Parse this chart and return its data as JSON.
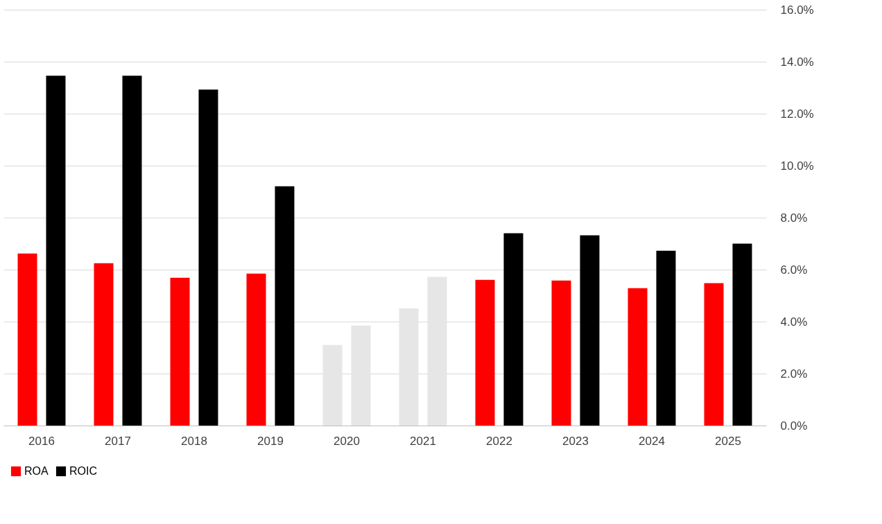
{
  "chart_data": {
    "type": "bar",
    "categories": [
      "2016",
      "2017",
      "2018",
      "2019",
      "2020",
      "2021",
      "2022",
      "2023",
      "2024",
      "2025"
    ],
    "series": [
      {
        "name": "ROA",
        "color": "#ff0000",
        "colors": [
          "#ff0000",
          "#ff0000",
          "#ff0000",
          "#ff0000",
          "#e6e6e6",
          "#e6e6e6",
          "#ff0000",
          "#ff0000",
          "#ff0000",
          "#ff0000"
        ],
        "values": [
          6.62,
          6.25,
          5.69,
          5.85,
          3.1,
          4.51,
          5.61,
          5.58,
          5.29,
          5.48
        ]
      },
      {
        "name": "ROIC",
        "color": "#000000",
        "colors": [
          "#000000",
          "#000000",
          "#000000",
          "#000000",
          "#e6e6e6",
          "#e6e6e6",
          "#000000",
          "#000000",
          "#000000",
          "#000000"
        ],
        "values": [
          13.46,
          13.46,
          12.93,
          9.21,
          3.85,
          5.72,
          7.4,
          7.32,
          6.73,
          7.0
        ]
      }
    ],
    "ylim": [
      0,
      16
    ],
    "yticks": [
      {
        "value": 0,
        "label": "0.0%"
      },
      {
        "value": 2,
        "label": "2.0%"
      },
      {
        "value": 4,
        "label": "4.0%"
      },
      {
        "value": 6,
        "label": "6.0%"
      },
      {
        "value": 8,
        "label": "8.0%"
      },
      {
        "value": 10,
        "label": "10.0%"
      },
      {
        "value": 12,
        "label": "12.0%"
      },
      {
        "value": 14,
        "label": "14.0%"
      },
      {
        "value": 16,
        "label": "16.0%"
      }
    ],
    "grid": "y",
    "legend": "bottom"
  }
}
